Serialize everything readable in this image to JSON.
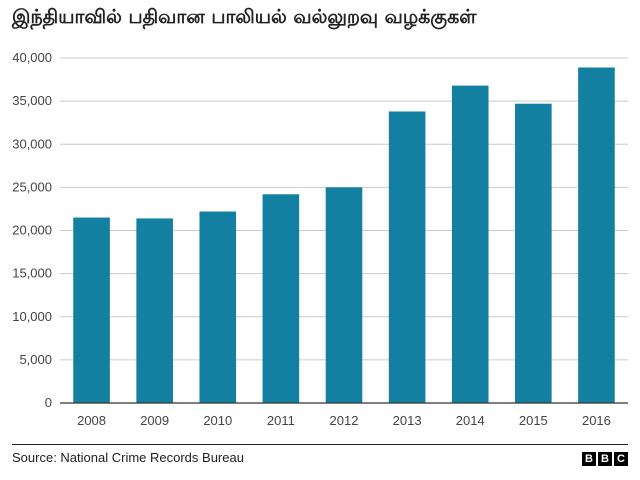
{
  "title": "இந்தியாவில் பதிவான பாலியல் வல்லுறவு வழக்குகள்",
  "source": "Source: National Crime Records Bureau",
  "logo": {
    "letters": [
      "B",
      "B",
      "C"
    ]
  },
  "colors": {
    "bar": "#1380A1",
    "gridline": "#cbcbcb",
    "axis": "#333333"
  },
  "chart_data": {
    "type": "bar",
    "title": "இந்தியாவில் பதிவான பாலியல் வல்லுறவு வழக்குகள்",
    "xlabel": "",
    "ylabel": "",
    "categories": [
      "2008",
      "2009",
      "2010",
      "2011",
      "2012",
      "2013",
      "2014",
      "2015",
      "2016"
    ],
    "values": [
      21500,
      21400,
      22200,
      24200,
      25000,
      33800,
      36800,
      34700,
      38900
    ],
    "ylim": [
      0,
      40000
    ],
    "yticks": [
      0,
      5000,
      10000,
      15000,
      20000,
      25000,
      30000,
      35000,
      40000
    ],
    "ytick_labels": [
      "0",
      "5,000",
      "10,000",
      "15,000",
      "20,000",
      "25,000",
      "30,000",
      "35,000",
      "40,000"
    ],
    "grid": true,
    "legend": "none"
  }
}
